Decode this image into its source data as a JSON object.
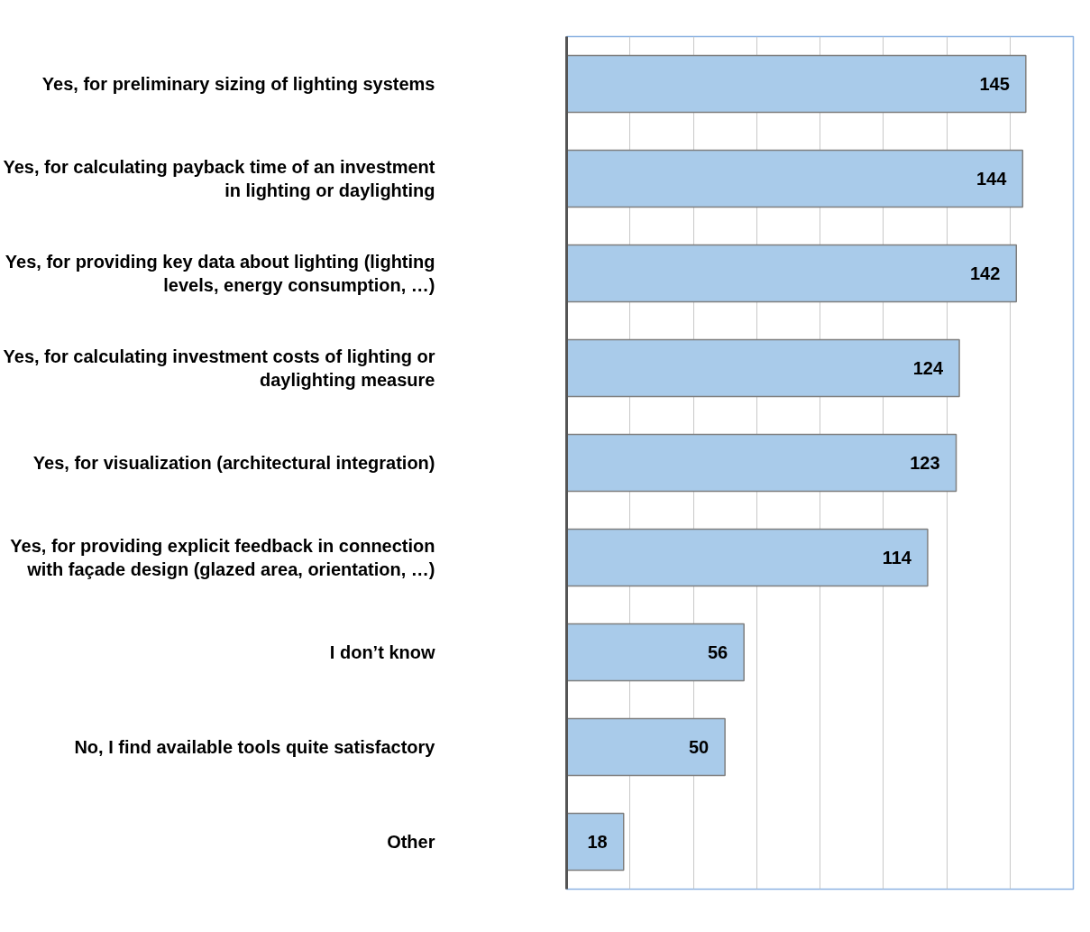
{
  "chart_data": {
    "type": "bar",
    "orientation": "horizontal",
    "categories": [
      "Yes, for preliminary sizing of lighting systems",
      "Yes, for calculating payback time of an investment in lighting or daylighting",
      "Yes, for providing key data about lighting (lighting levels, energy consumption, …)",
      "Yes, for calculating investment costs of lighting or daylighting measure",
      "Yes, for visualization (architectural integration)",
      "Yes, for providing explicit feedback in connection with façade design (glazed area, orientation, …)",
      "I don’t know",
      "No, I find available tools quite satisfactory",
      "Other"
    ],
    "values": [
      145,
      144,
      142,
      124,
      123,
      114,
      56,
      50,
      18
    ],
    "color": "#a9cbea",
    "xlim": [
      0,
      160
    ],
    "xticks": [
      {
        "value": 0,
        "label": null
      },
      {
        "value": 20,
        "label": null
      },
      {
        "value": 40,
        "label": null
      },
      {
        "value": 60,
        "label": null
      },
      {
        "value": 80,
        "label": null
      },
      {
        "value": 100,
        "label": null
      },
      {
        "value": 120,
        "label": null
      },
      {
        "value": 140,
        "label": null
      }
    ],
    "grid": "x",
    "tick_labels": "y",
    "data_labels": true
  }
}
